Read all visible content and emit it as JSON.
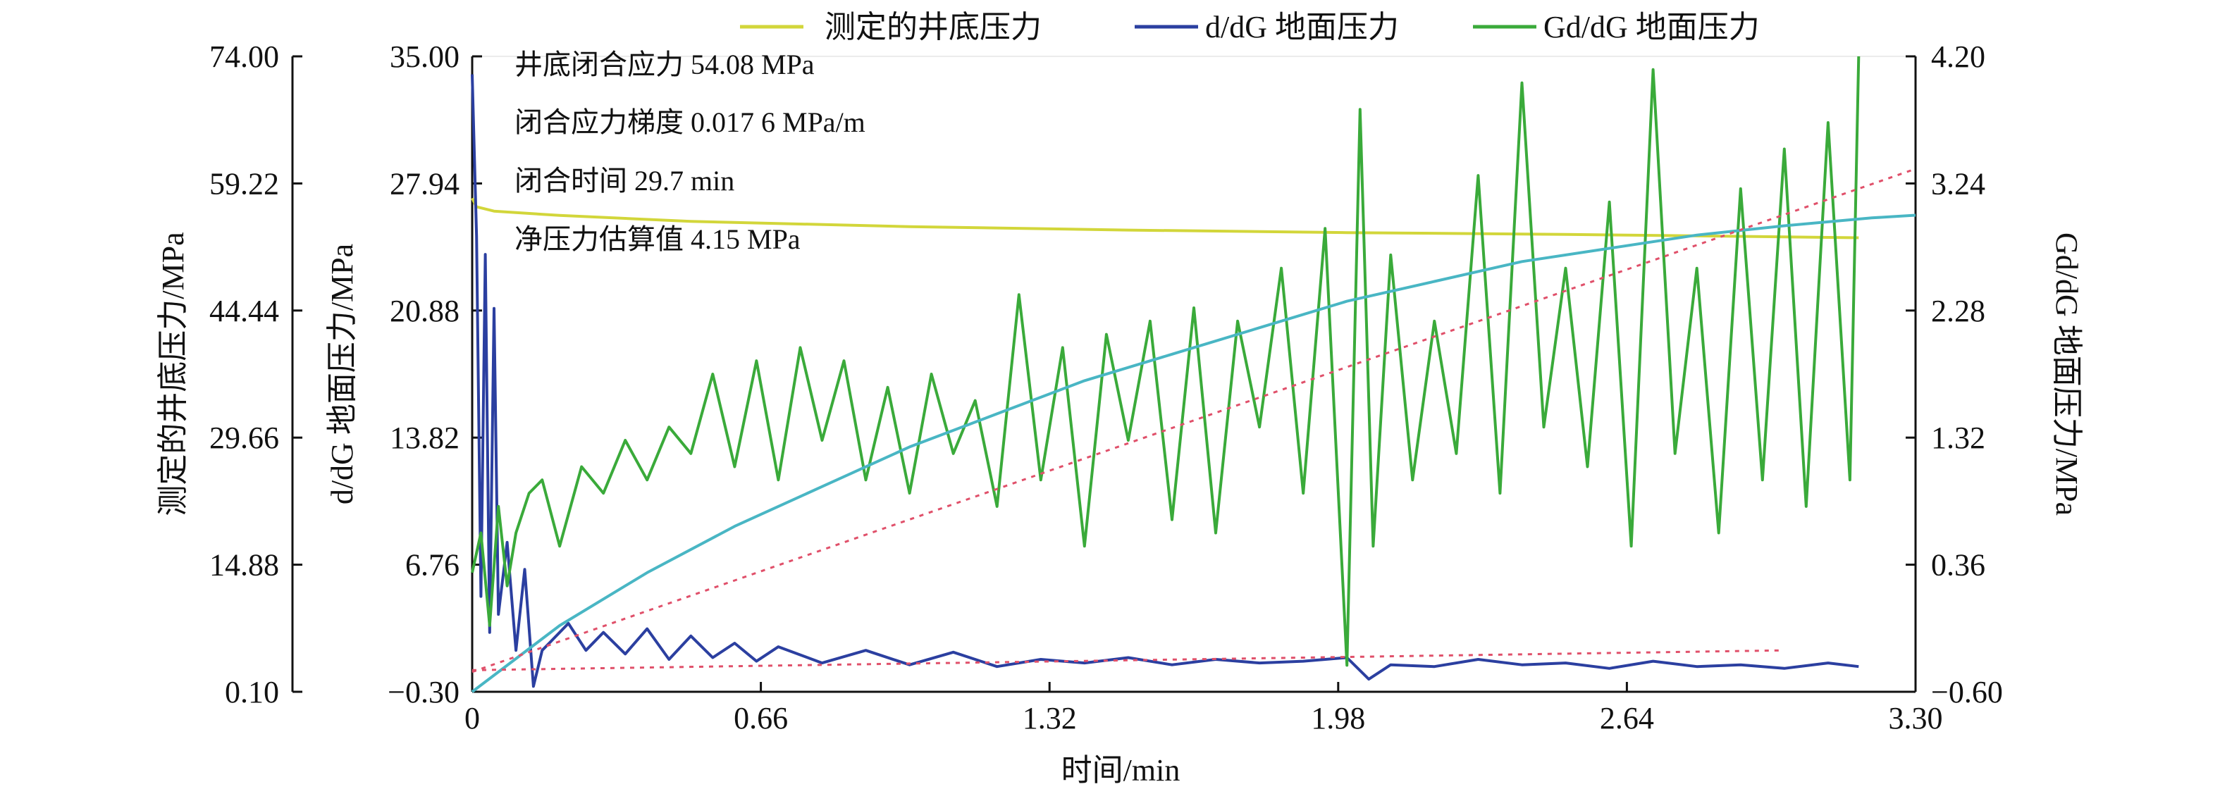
{
  "chart_data": {
    "type": "line",
    "legend": {
      "placement": "top",
      "entries": [
        {
          "label": "测定的井底压力",
          "color": "#d2d63a"
        },
        {
          "label": "d/dG 地面压力",
          "color": "#2b3fa0"
        },
        {
          "label": "Gd/dG 地面压力",
          "color": "#3aaa3a"
        }
      ]
    },
    "xlabel": "时间/min",
    "ylabel_left_outer": "测定的井底压力/MPa",
    "ylabel_left_inner": "d/dG 地面压力/MPa",
    "ylabel_right": "Gd/dG 地面压力/MPa",
    "xlim": [
      0,
      3.3
    ],
    "x_ticks": [
      "0",
      "0.66",
      "1.32",
      "1.98",
      "2.64",
      "3.30"
    ],
    "y_outer_lim": [
      0.1,
      74.0
    ],
    "y_outer_ticks": [
      "0.10",
      "14.88",
      "29.66",
      "44.44",
      "59.22",
      "74.00"
    ],
    "y_inner_lim": [
      -0.3,
      35.0
    ],
    "y_inner_ticks": [
      "−0.30",
      "6.76",
      "13.82",
      "20.88",
      "27.94",
      "35.00"
    ],
    "y_right_lim": [
      -0.6,
      4.2
    ],
    "y_right_ticks": [
      "−0.60",
      "0.36",
      "1.32",
      "2.28",
      "3.24",
      "4.20"
    ],
    "annotations": [
      "井底闭合应力 54.08 MPa",
      "闭合应力梯度 0.017 6 MPa/m",
      "闭合时间 29.7 min",
      "净压力估算值 4.15 MPa"
    ],
    "series": [
      {
        "name": "测定的井底压力",
        "axis": "outer",
        "color": "#d2d63a",
        "x": [
          0.0,
          0.01,
          0.05,
          0.2,
          0.5,
          1.0,
          1.5,
          2.0,
          2.5,
          3.0,
          3.17
        ],
        "values": [
          57.5,
          56.5,
          56.0,
          55.5,
          54.8,
          54.2,
          53.8,
          53.5,
          53.3,
          53.0,
          52.9
        ]
      },
      {
        "name": "d/dG 地面压力",
        "axis": "inner",
        "color": "#2b3fa0",
        "x": [
          0.0,
          0.01,
          0.02,
          0.03,
          0.04,
          0.05,
          0.06,
          0.08,
          0.1,
          0.12,
          0.14,
          0.16,
          0.18,
          0.22,
          0.26,
          0.3,
          0.35,
          0.4,
          0.45,
          0.5,
          0.55,
          0.6,
          0.65,
          0.7,
          0.8,
          0.9,
          1.0,
          1.1,
          1.2,
          1.3,
          1.4,
          1.5,
          1.6,
          1.7,
          1.8,
          1.9,
          2.0,
          2.05,
          2.1,
          2.2,
          2.3,
          2.4,
          2.5,
          2.6,
          2.7,
          2.8,
          2.9,
          3.0,
          3.1,
          3.17
        ],
        "values": [
          34.0,
          25.0,
          5.0,
          24.0,
          3.0,
          21.0,
          4.0,
          8.0,
          2.0,
          6.5,
          0.0,
          2.0,
          2.5,
          3.5,
          2.0,
          3.0,
          1.8,
          3.2,
          1.5,
          2.8,
          1.6,
          2.4,
          1.4,
          2.2,
          1.3,
          2.0,
          1.2,
          1.9,
          1.1,
          1.5,
          1.3,
          1.6,
          1.2,
          1.5,
          1.3,
          1.4,
          1.6,
          0.4,
          1.2,
          1.1,
          1.5,
          1.2,
          1.3,
          1.0,
          1.4,
          1.1,
          1.2,
          1.0,
          1.3,
          1.1
        ]
      },
      {
        "name": "Gd/dG 地面压力",
        "axis": "right",
        "color": "#3aaa3a",
        "x": [
          0.0,
          0.02,
          0.04,
          0.06,
          0.08,
          0.1,
          0.13,
          0.16,
          0.2,
          0.25,
          0.3,
          0.35,
          0.4,
          0.45,
          0.5,
          0.55,
          0.6,
          0.65,
          0.7,
          0.75,
          0.8,
          0.85,
          0.9,
          0.95,
          1.0,
          1.05,
          1.1,
          1.15,
          1.2,
          1.25,
          1.3,
          1.35,
          1.4,
          1.45,
          1.5,
          1.55,
          1.6,
          1.65,
          1.7,
          1.75,
          1.8,
          1.85,
          1.9,
          1.95,
          2.0,
          2.03,
          2.06,
          2.1,
          2.15,
          2.2,
          2.25,
          2.3,
          2.35,
          2.4,
          2.45,
          2.5,
          2.55,
          2.6,
          2.65,
          2.7,
          2.75,
          2.8,
          2.85,
          2.9,
          2.95,
          3.0,
          3.05,
          3.1,
          3.15,
          3.17
        ],
        "values": [
          0.3,
          0.6,
          -0.1,
          0.8,
          0.2,
          0.6,
          0.9,
          1.0,
          0.5,
          1.1,
          0.9,
          1.3,
          1.0,
          1.4,
          1.2,
          1.8,
          1.1,
          1.9,
          1.0,
          2.0,
          1.3,
          1.9,
          1.0,
          1.7,
          0.9,
          1.8,
          1.2,
          1.6,
          0.8,
          2.4,
          1.0,
          2.0,
          0.5,
          2.1,
          1.3,
          2.2,
          0.7,
          2.3,
          0.6,
          2.2,
          1.4,
          2.6,
          0.9,
          2.9,
          -0.4,
          3.8,
          0.5,
          2.7,
          1.0,
          2.2,
          1.2,
          3.3,
          0.9,
          4.0,
          1.4,
          2.6,
          1.1,
          3.1,
          0.5,
          4.1,
          1.2,
          2.6,
          0.6,
          3.2,
          1.0,
          3.5,
          0.8,
          3.7,
          1.0,
          4.2
        ]
      },
      {
        "name": "",
        "axis": "right",
        "color": "#49b6c4",
        "x": [
          0.0,
          0.2,
          0.4,
          0.6,
          0.8,
          1.0,
          1.2,
          1.4,
          1.6,
          1.8,
          2.0,
          2.2,
          2.4,
          2.6,
          2.8,
          3.0,
          3.2,
          3.3
        ],
        "values": [
          -0.6,
          -0.1,
          0.3,
          0.65,
          0.95,
          1.25,
          1.5,
          1.75,
          1.95,
          2.15,
          2.35,
          2.5,
          2.65,
          2.75,
          2.85,
          2.92,
          2.98,
          3.0
        ]
      },
      {
        "name": "",
        "axis": "right",
        "color": "#e0506a",
        "dashed": true,
        "x": [
          0.0,
          3.3
        ],
        "values": [
          -0.45,
          3.35
        ]
      },
      {
        "name": "",
        "axis": "inner",
        "color": "#e0506a",
        "dashed": true,
        "x": [
          0.0,
          3.0
        ],
        "values": [
          0.9,
          2.0
        ]
      }
    ]
  }
}
